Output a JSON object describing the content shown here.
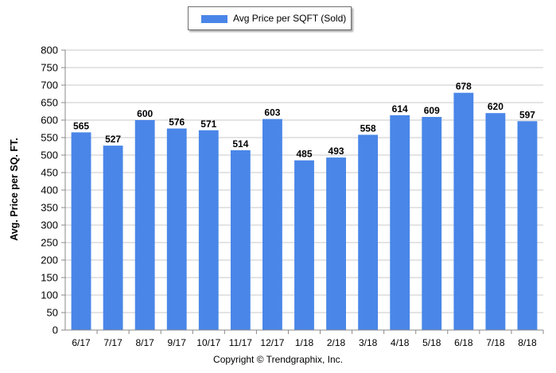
{
  "legend": {
    "label": "Avg Price per SQFT (Sold)"
  },
  "footer": {
    "copyright": "Copyright © Trendgraphix, Inc."
  },
  "colors": {
    "bar": "#4a86e8",
    "grid": "#c8c8c8",
    "axis": "#888888"
  },
  "chart_data": {
    "type": "bar",
    "title": "",
    "xlabel": "",
    "ylabel": "Avg. Price per SQ. FT.",
    "ylim": [
      0,
      800
    ],
    "ytick_step": 50,
    "grid": true,
    "legend_position": "top-center",
    "categories": [
      "6/17",
      "7/17",
      "8/17",
      "9/17",
      "10/17",
      "11/17",
      "12/17",
      "1/18",
      "2/18",
      "3/18",
      "4/18",
      "5/18",
      "6/18",
      "7/18",
      "8/18"
    ],
    "series": [
      {
        "name": "Avg Price per SQFT (Sold)",
        "values": [
          565,
          527,
          600,
          576,
          571,
          514,
          603,
          485,
          493,
          558,
          614,
          609,
          678,
          620,
          597
        ]
      }
    ]
  }
}
